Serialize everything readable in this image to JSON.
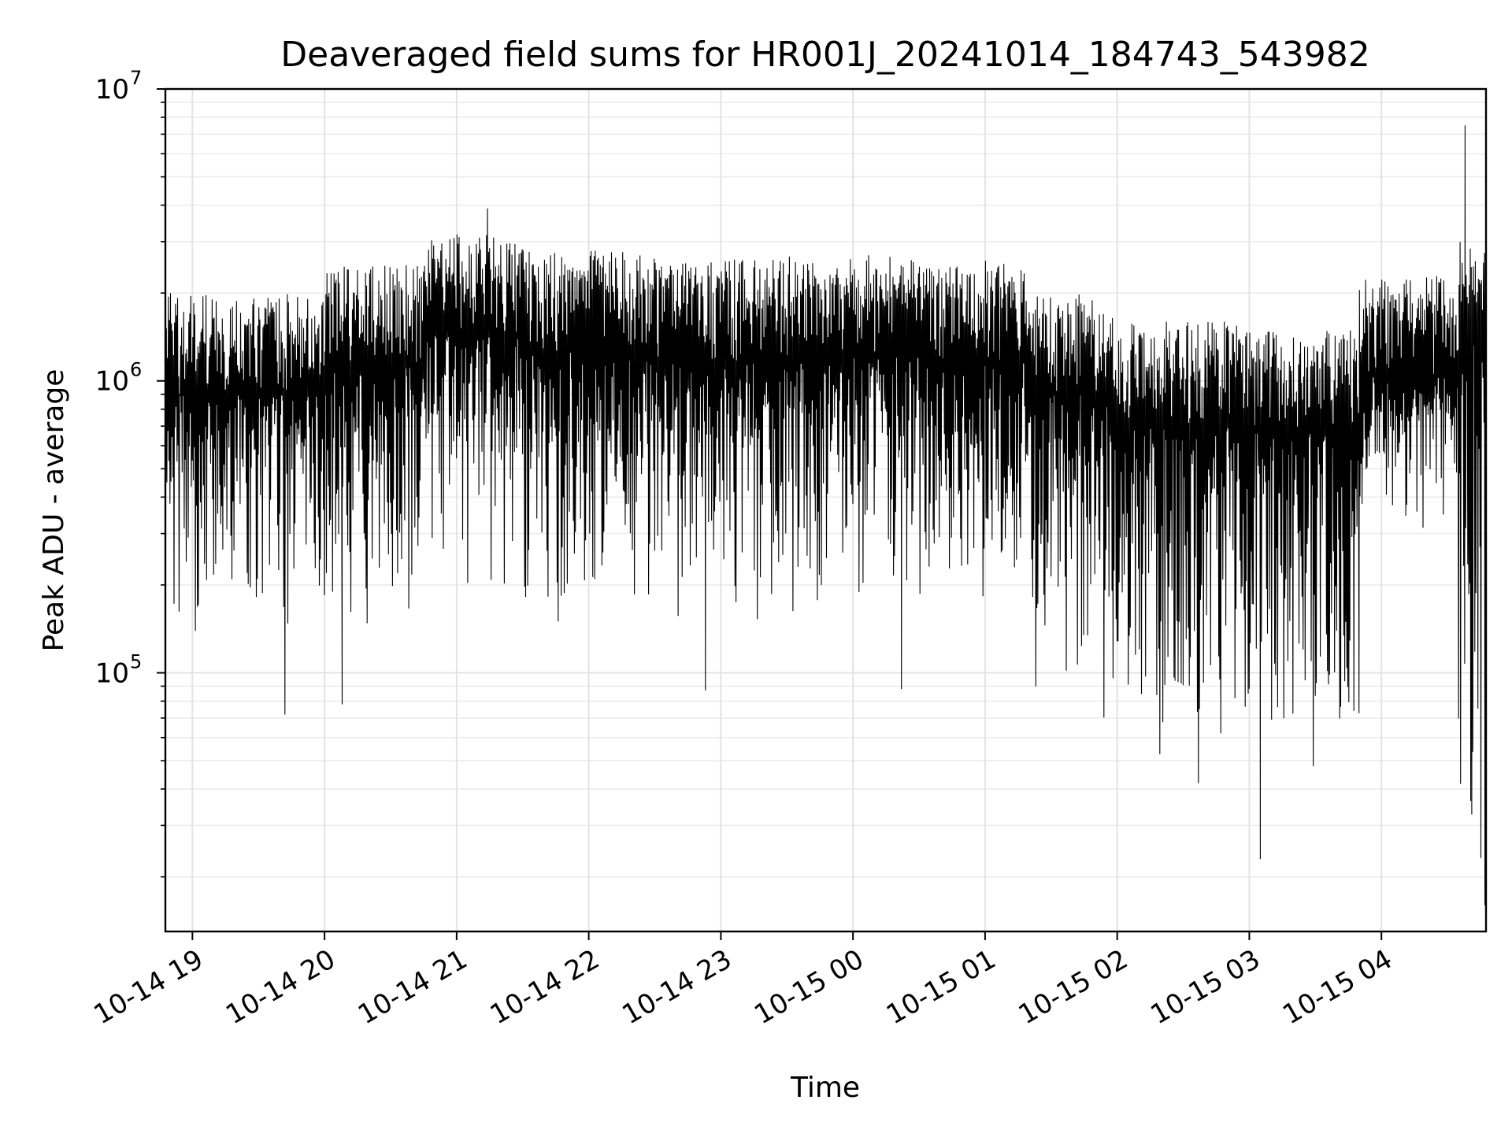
{
  "chart_data": {
    "type": "line",
    "title": "Deaveraged field sums for HR001J_20241014_184743_543982",
    "xlabel": "Time",
    "ylabel": "Peak ADU - average",
    "yscale": "log",
    "ylim": [
      13000,
      10000000
    ],
    "xlim": [
      "2024-10-14 18:47:43",
      "2024-10-15 04:47:30"
    ],
    "grid": true,
    "legend": "none",
    "line_color": "#000000",
    "x_ticks": [
      {
        "value": "2024-10-14 19:00",
        "label": "10-14 19"
      },
      {
        "value": "2024-10-14 20:00",
        "label": "10-14 20"
      },
      {
        "value": "2024-10-14 21:00",
        "label": "10-14 21"
      },
      {
        "value": "2024-10-14 22:00",
        "label": "10-14 22"
      },
      {
        "value": "2024-10-14 23:00",
        "label": "10-14 23"
      },
      {
        "value": "2024-10-15 00:00",
        "label": "10-15 00"
      },
      {
        "value": "2024-10-15 01:00",
        "label": "10-15 01"
      },
      {
        "value": "2024-10-15 02:00",
        "label": "10-15 02"
      },
      {
        "value": "2024-10-15 03:00",
        "label": "10-15 03"
      },
      {
        "value": "2024-10-15 04:00",
        "label": "10-15 04"
      }
    ],
    "y_ticks": [
      {
        "value": 100000,
        "base": "10",
        "exp": "5"
      },
      {
        "value": 1000000,
        "base": "10",
        "exp": "6"
      },
      {
        "value": 10000000,
        "base": "10",
        "exp": "7"
      }
    ],
    "envelope": {
      "description_of_values": "approximate per-segment upper and lower extent of the oscillating signal",
      "segments": [
        {
          "start": "2024-10-14 18:47",
          "end": "2024-10-14 19:15",
          "max": 2000000,
          "min": 130000
        },
        {
          "start": "2024-10-14 19:15",
          "end": "2024-10-14 20:00",
          "max": 2000000,
          "min": 110000
        },
        {
          "start": "2024-10-14 20:00",
          "end": "2024-10-14 20:45",
          "max": 2500000,
          "min": 130000
        },
        {
          "start": "2024-10-14 20:45",
          "end": "2024-10-14 21:30",
          "max": 3200000,
          "min": 180000
        },
        {
          "start": "2024-10-14 21:30",
          "end": "2024-10-14 22:30",
          "max": 2800000,
          "min": 130000
        },
        {
          "start": "2024-10-14 22:30",
          "end": "2024-10-14 23:30",
          "max": 2600000,
          "min": 140000
        },
        {
          "start": "2024-10-14 23:30",
          "end": "2024-10-15 00:30",
          "max": 2700000,
          "min": 150000
        },
        {
          "start": "2024-10-15 00:30",
          "end": "2024-10-15 01:20",
          "max": 2600000,
          "min": 140000
        },
        {
          "start": "2024-10-15 01:20",
          "end": "2024-10-15 02:00",
          "max": 2000000,
          "min": 60000
        },
        {
          "start": "2024-10-15 02:00",
          "end": "2024-10-15 03:00",
          "max": 1600000,
          "min": 40000
        },
        {
          "start": "2024-10-15 03:00",
          "end": "2024-10-15 03:50",
          "max": 1500000,
          "min": 45000
        },
        {
          "start": "2024-10-15 03:50",
          "end": "2024-10-15 04:35",
          "max": 2300000,
          "min": 300000
        },
        {
          "start": "2024-10-15 04:35",
          "end": "2024-10-15 04:47",
          "max": 3000000,
          "min": 16000
        }
      ],
      "notable_points": [
        {
          "x": "2024-10-14 19:42",
          "y": 72000
        },
        {
          "x": "2024-10-14 20:08",
          "y": 78000
        },
        {
          "x": "2024-10-14 21:14",
          "y": 3900000
        },
        {
          "x": "2024-10-14 22:53",
          "y": 87000
        },
        {
          "x": "2024-10-15 00:22",
          "y": 88000
        },
        {
          "x": "2024-10-15 03:05",
          "y": 23000
        },
        {
          "x": "2024-10-15 04:38",
          "y": 7500000
        },
        {
          "x": "2024-10-15 04:47",
          "y": 16000
        }
      ]
    }
  }
}
